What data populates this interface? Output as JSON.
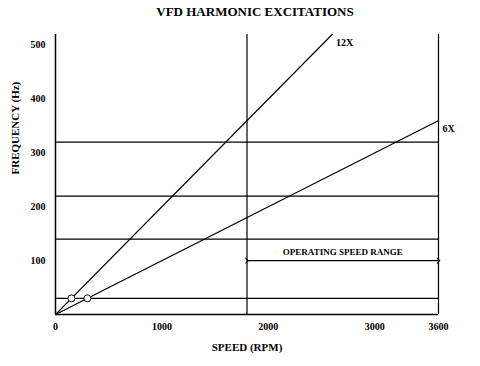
{
  "chart_data": {
    "type": "line",
    "title": "VFD HARMONIC EXCITATIONS",
    "x_label": "SPEED (RPM)",
    "y_label": "FREQUENCY (Hz)",
    "xlim": [
      0,
      3600
    ],
    "ylim": [
      0,
      520
    ],
    "xticks": [
      0,
      1000,
      2000,
      3000,
      3600
    ],
    "yticks": [
      100,
      200,
      300,
      400,
      500
    ],
    "series": [
      {
        "name": "12X",
        "color": "#000000",
        "x": [
          0,
          2600
        ],
        "values": [
          0,
          520
        ]
      },
      {
        "name": "6X",
        "color": "#000000",
        "x": [
          0,
          3600
        ],
        "values": [
          0,
          360
        ]
      }
    ],
    "natural_frequencies": [
      30,
      140,
      220,
      320
    ],
    "speed_limits": [
      1800,
      3600
    ],
    "crossings": {
      "x": [
        150,
        300
      ],
      "values": [
        30,
        30
      ]
    },
    "annotation": {
      "text": "OPERATING SPEED RANGE",
      "x": [
        1800,
        3600
      ],
      "y": 100
    },
    "grid": false
  }
}
